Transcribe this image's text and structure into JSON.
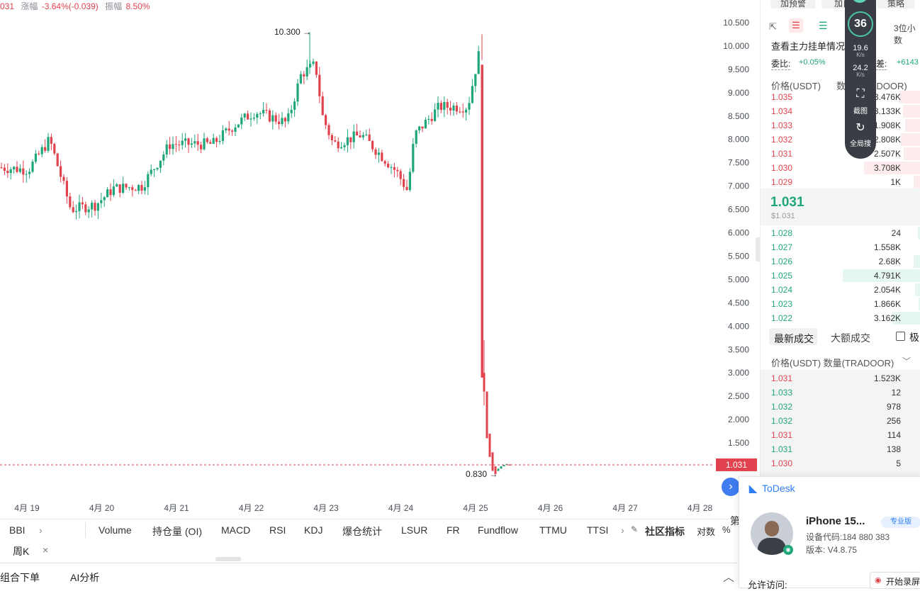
{
  "top_stats": {
    "price_fragment": "031",
    "change_label": "涨幅",
    "change_value": "-3.64%(-0.039)",
    "amplitude_label": "振幅",
    "amplitude_value": "8.50%"
  },
  "chart_data": {
    "type": "candlestick",
    "y_ticks": [
      "10.500",
      "10.000",
      "9.500",
      "9.000",
      "8.500",
      "8.000",
      "7.500",
      "7.000",
      "6.500",
      "6.000",
      "5.500",
      "5.000",
      "4.500",
      "4.000",
      "3.500",
      "3.000",
      "2.500",
      "2.000",
      "1.500"
    ],
    "ylim": [
      1.0,
      10.5
    ],
    "x_ticks": [
      "4月 19",
      "4月 20",
      "4月 21",
      "4月 22",
      "4月 23",
      "4月 24",
      "4月 25",
      "4月 26",
      "4月 27",
      "4月 28"
    ],
    "high_marker": "10.300",
    "low_marker": "0.830",
    "last_price_tag": "1.031",
    "up_color": "#1fa67a",
    "down_color": "#e0434d",
    "candles_summary": [
      {
        "date": "4月 19",
        "approx": 7.4
      },
      {
        "date": "4月 20",
        "approx": 6.9
      },
      {
        "date": "4月 21",
        "approx": 7.9
      },
      {
        "date": "4月 22",
        "approx": 8.5
      },
      {
        "date": "4月 23",
        "approx": 8.0
      },
      {
        "date": "4月 24",
        "approx": 7.2
      },
      {
        "date": "4月 25",
        "approx": 9.6
      },
      {
        "date": "4月 25 crash",
        "approx": 0.95
      }
    ]
  },
  "indicators": {
    "bbi": "BBI",
    "items": [
      "Volume",
      "持仓量 (OI)",
      "MACD",
      "RSI",
      "KDJ",
      "爆仓统计",
      "LSUR",
      "FR",
      "Fundflow",
      "TTMU",
      "TTSI"
    ],
    "community": "社区指标",
    "log": "对数",
    "percent": "%",
    "cut_item": "第"
  },
  "period_tab": {
    "label": "周K",
    "close": "×"
  },
  "bottom_tabs": {
    "combo": "组合下单",
    "ai": "AI分析",
    "collapse_icon": "chevron-up-icon"
  },
  "panel": {
    "top_buttons": [
      "加预警",
      "加自",
      "策略"
    ],
    "decimals": "3位小数",
    "main_order": "查看主力挂单情况",
    "ratio_label": "委比:",
    "ratio_value": "+0.05%",
    "diff_label": "差:",
    "diff_value": "+6143",
    "col_price": "价格(USDT)",
    "col_qty": "数量(TRADOOR)",
    "asks": [
      {
        "p": "1.035",
        "q": "3.476K"
      },
      {
        "p": "1.034",
        "q": "3.133K"
      },
      {
        "p": "1.033",
        "q": "1.908K"
      },
      {
        "p": "1.032",
        "q": "2.808K"
      },
      {
        "p": "1.031",
        "q": "2.507K"
      },
      {
        "p": "1.030",
        "q": "3.708K"
      },
      {
        "p": "1.029",
        "q": "1K"
      }
    ],
    "last_price": "1.031",
    "last_price_usd": "$1.031",
    "bids": [
      {
        "p": "1.028",
        "q": "24"
      },
      {
        "p": "1.027",
        "q": "1.558K"
      },
      {
        "p": "1.026",
        "q": "2.68K"
      },
      {
        "p": "1.025",
        "q": "4.791K"
      },
      {
        "p": "1.024",
        "q": "2.054K"
      },
      {
        "p": "1.023",
        "q": "1.866K"
      },
      {
        "p": "1.022",
        "q": "3.162K"
      }
    ],
    "trades_tab_latest": "最新成交",
    "trades_tab_large": "大额成交",
    "trades_check_label": "极",
    "trades_header": "价格(USDT) 数量(TRADOOR)",
    "trades": [
      {
        "p": "1.031",
        "q": "1.523K",
        "side": "sell"
      },
      {
        "p": "1.033",
        "q": "12",
        "side": "buy"
      },
      {
        "p": "1.032",
        "q": "978",
        "side": "buy"
      },
      {
        "p": "1.032",
        "q": "256",
        "side": "buy"
      },
      {
        "p": "1.031",
        "q": "114",
        "side": "sell"
      },
      {
        "p": "1.031",
        "q": "138",
        "side": "buy"
      },
      {
        "p": "1.030",
        "q": "5",
        "side": "sell"
      }
    ]
  },
  "widget": {
    "score": "36",
    "up_speed": "19.6",
    "up_unit": "K/s",
    "down_speed": "24.2",
    "down_unit": "K/s",
    "screenshot": "截图",
    "search": "全局搜"
  },
  "todesk": {
    "brand": "ToDesk",
    "device_name": "iPhone 15...",
    "badge": "专业版",
    "device_code": "设备代码:184 880 383",
    "version": "版本: V4.8.75",
    "allow_access": "允许访问:",
    "record": "开始录屏"
  }
}
